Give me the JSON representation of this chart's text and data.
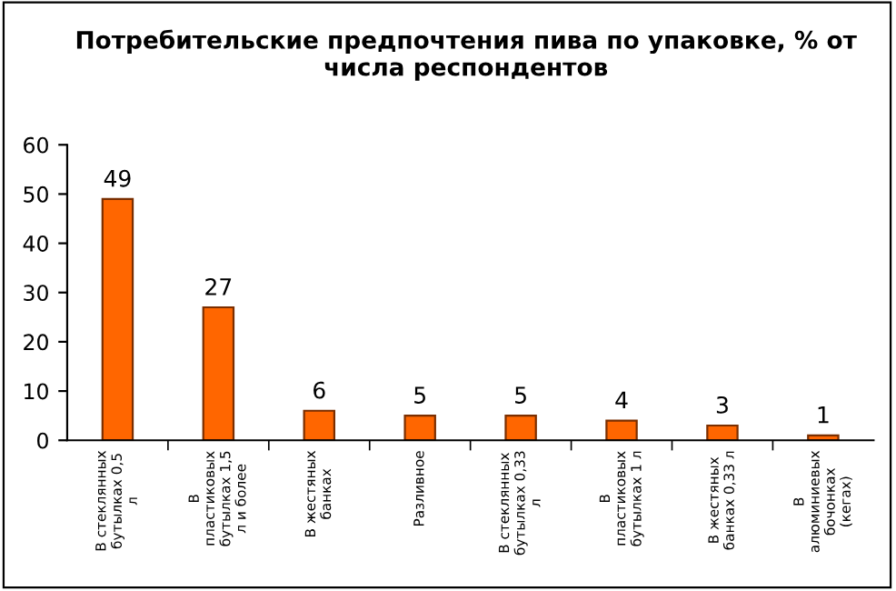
{
  "chart_data": {
    "type": "bar",
    "title": "Потребительские предпочтения пива по упаковке, % от\nчисла респондентов",
    "categories": [
      "В стеклянных\nбутылках 0,5\nл",
      "В\nпластиковых\nбутылках 1,5\nл и более",
      "В жестяных\nбанках",
      "Разливное",
      "В стеклянных\nбутылках 0,33\nл",
      "В\nпластиковых\nбутылках 1 л",
      "В жестяных\nбанках 0,33 л",
      "В\nалюминиевых\nбочонках\n(кегах)"
    ],
    "values": [
      49,
      27,
      6,
      5,
      5,
      4,
      3,
      1
    ],
    "color": "#ff6600",
    "data_labels": true,
    "ylim": [
      0,
      60
    ],
    "yticks": [
      0,
      10,
      20,
      30,
      40,
      50,
      60
    ],
    "grid": false,
    "legend": false
  }
}
